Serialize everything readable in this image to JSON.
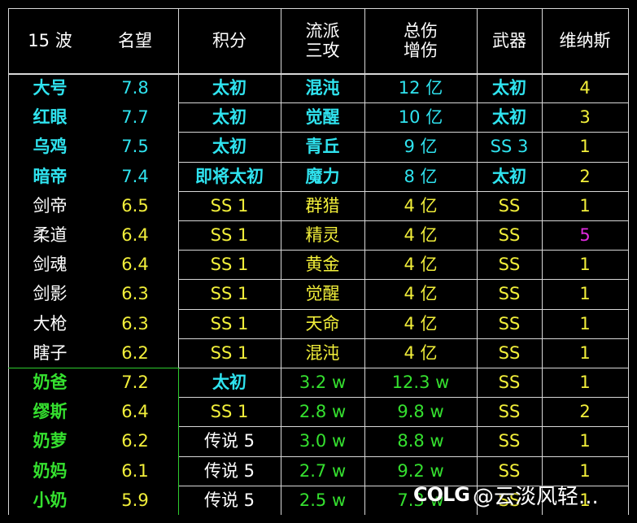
{
  "header": {
    "col1": "15 波",
    "col2": "名望",
    "col3": "积分",
    "col4a": "流派",
    "col4b": "三攻",
    "col5a": "总伤",
    "col5b": "增伤",
    "col6": "武器",
    "col7": "维纳斯"
  },
  "rows": [
    [
      "大号",
      "7.8",
      "太初",
      "混沌",
      "12 亿",
      "太初",
      "4"
    ],
    [
      "红眼",
      "7.7",
      "太初",
      "觉醒",
      "10 亿",
      "太初",
      "3"
    ],
    [
      "乌鸡",
      "7.5",
      "太初",
      "青丘",
      "9 亿",
      "SS 3",
      "1"
    ],
    [
      "暗帝",
      "7.4",
      "即将太初",
      "魔力",
      "8 亿",
      "太初",
      "2"
    ],
    [
      "剑帝",
      "6.5",
      "SS 1",
      "群猎",
      "4 亿",
      "SS",
      "1"
    ],
    [
      "柔道",
      "6.4",
      "SS 1",
      "精灵",
      "4 亿",
      "SS",
      "5"
    ],
    [
      "剑魂",
      "6.4",
      "SS 1",
      "黄金",
      "4 亿",
      "SS",
      "1"
    ],
    [
      "剑影",
      "6.3",
      "SS 1",
      "觉醒",
      "4 亿",
      "SS",
      "1"
    ],
    [
      "大枪",
      "6.3",
      "SS 1",
      "天命",
      "4 亿",
      "SS",
      "1"
    ],
    [
      "瞎子",
      "6.2",
      "SS 1",
      "混沌",
      "4 亿",
      "SS",
      "1"
    ],
    [
      "奶爸",
      "7.2",
      "太初",
      "3.2 w",
      "12.3 w",
      "SS",
      "1"
    ],
    [
      "缪斯",
      "6.4",
      "SS 1",
      "2.8 w",
      "9.8 w",
      "SS",
      "2"
    ],
    [
      "奶萝",
      "6.2",
      "传说 5",
      "3.0 w",
      "8.8 w",
      "SS",
      "1"
    ],
    [
      "奶妈",
      "6.1",
      "传说 5",
      "2.7 w",
      "9.2 w",
      "SS",
      "1"
    ],
    [
      "小奶",
      "5.9",
      "传说 5",
      "2.5 w",
      "7.3 w",
      "SS",
      "1"
    ]
  ],
  "colors": {
    "cyan": "#2fe3ef",
    "yellow": "#f2ef3a",
    "white": "#ffffff",
    "green": "#35e02f",
    "magenta": "#e02adf",
    "grid": "#d8d8d8"
  },
  "watermark": {
    "logo": "COLG",
    "text": "@云淡风轻..."
  }
}
